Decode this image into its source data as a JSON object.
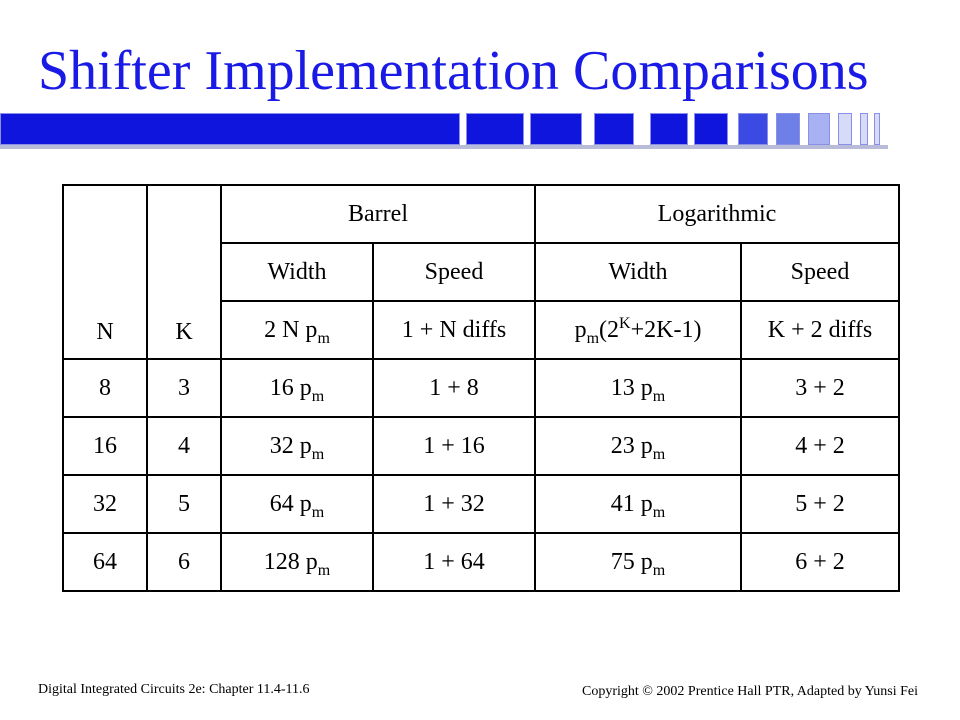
{
  "slide": {
    "title": "Shifter Implementation Comparisons"
  },
  "table": {
    "col_n": "N",
    "col_k": "K",
    "groups": [
      "Barrel",
      "Logarithmic"
    ],
    "subheaders": [
      "Width",
      "Speed",
      "Width",
      "Speed"
    ],
    "formulas": {
      "barrel_width": {
        "pre": "2 N p",
        "sub": "m"
      },
      "barrel_speed": "1 + N diffs",
      "log_width": {
        "p": "p",
        "sub": "m",
        "paren_open": "(2",
        "sup": "K",
        "rest": "+2K-1)"
      },
      "log_speed": "K + 2 diffs"
    },
    "rows": [
      {
        "n": "8",
        "k": "3",
        "bw": "16 p",
        "bw_sub": "m",
        "bs": "1 + 8",
        "lw": "13 p",
        "lw_sub": "m",
        "ls": "3 + 2"
      },
      {
        "n": "16",
        "k": "4",
        "bw": "32 p",
        "bw_sub": "m",
        "bs": "1 + 16",
        "lw": "23 p",
        "lw_sub": "m",
        "ls": "4 + 2"
      },
      {
        "n": "32",
        "k": "5",
        "bw": "64 p",
        "bw_sub": "m",
        "bs": "1 + 32",
        "lw": "41 p",
        "lw_sub": "m",
        "ls": "5 + 2"
      },
      {
        "n": "64",
        "k": "6",
        "bw": "128 p",
        "bw_sub": "m",
        "bs": "1 + 64",
        "lw": "75 p",
        "lw_sub": "m",
        "ls": "6 + 2"
      }
    ]
  },
  "footer": {
    "left": "Digital Integrated Circuits 2e: Chapter 11.4-11.6",
    "copyright_symbol": "©",
    "right": "Copyright",
    "right_rest": "2002 Prentice Hall PTR, Adapted by Yunsi Fei"
  },
  "colors": {
    "title": "#1a1ae6",
    "bar": "#0f15dc"
  }
}
